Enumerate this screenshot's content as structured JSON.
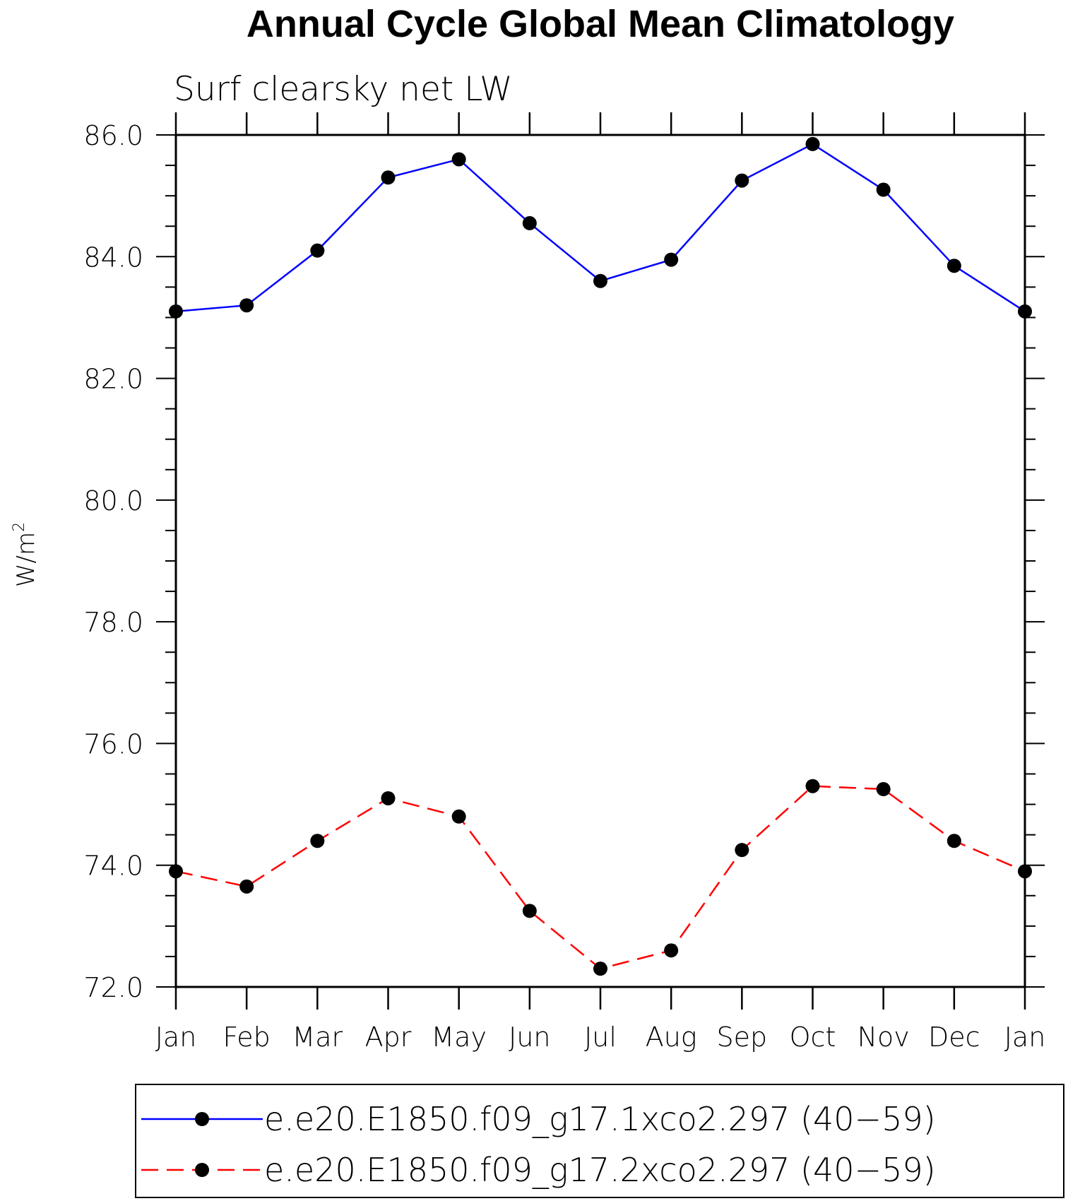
{
  "chart_data": {
    "type": "line",
    "title": "Annual Cycle Global Mean Climatology",
    "subtitle": "Surf clearsky net LW",
    "ylabel": "W/m",
    "ylabel_superscript": "2",
    "ylim": [
      72.0,
      86.0
    ],
    "yticks": [
      "72.0",
      "74.0",
      "76.0",
      "78.0",
      "80.0",
      "82.0",
      "84.0",
      "86.0"
    ],
    "categories": [
      "Jan",
      "Feb",
      "Mar",
      "Apr",
      "May",
      "Jun",
      "Jul",
      "Aug",
      "Sep",
      "Oct",
      "Nov",
      "Dec",
      "Jan"
    ],
    "series": [
      {
        "name": "e.e20.E1850.f09_g17.1xco2.297 (40−59)",
        "color": "#0000ff",
        "dash": "solid",
        "values": [
          83.1,
          83.2,
          84.1,
          85.3,
          85.6,
          84.55,
          83.6,
          83.95,
          85.25,
          85.85,
          85.1,
          83.85,
          83.1
        ]
      },
      {
        "name": "e.e20.E1850.f09_g17.2xco2.297 (40−59)",
        "color": "#ff0000",
        "dash": "dashed",
        "values": [
          73.9,
          73.65,
          74.4,
          75.1,
          74.8,
          73.25,
          72.3,
          72.6,
          74.25,
          75.3,
          75.25,
          74.4,
          73.9
        ]
      }
    ],
    "grid": false,
    "legend_position": "bottom"
  }
}
